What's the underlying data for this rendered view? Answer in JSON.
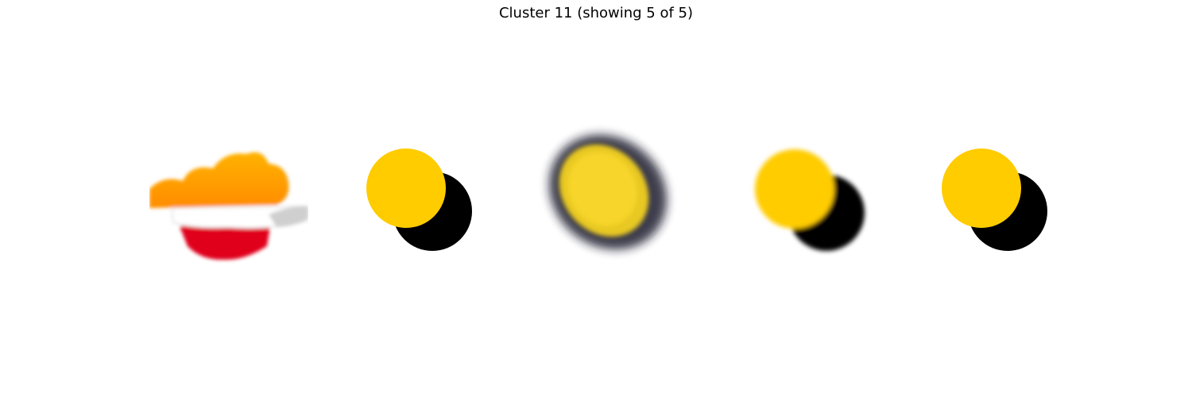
{
  "figure": {
    "title": "Cluster 11 (showing 5 of 5)"
  },
  "thumbnails": [
    {
      "icon": "cloud-flag-icon",
      "colors": [
        "#ff9a00",
        "#ffffff",
        "#e0001a",
        "#d9d9d9"
      ]
    },
    {
      "icon": "eclipse-icon",
      "colors": [
        "#ffcc00",
        "#000000"
      ]
    },
    {
      "icon": "blurred-eclipse-icon",
      "colors": [
        "#f5d020",
        "#1a1a2e"
      ]
    },
    {
      "icon": "eclipse-icon",
      "colors": [
        "#ffcc00",
        "#000000"
      ]
    },
    {
      "icon": "eclipse-icon",
      "colors": [
        "#ffcc00",
        "#000000"
      ]
    }
  ]
}
